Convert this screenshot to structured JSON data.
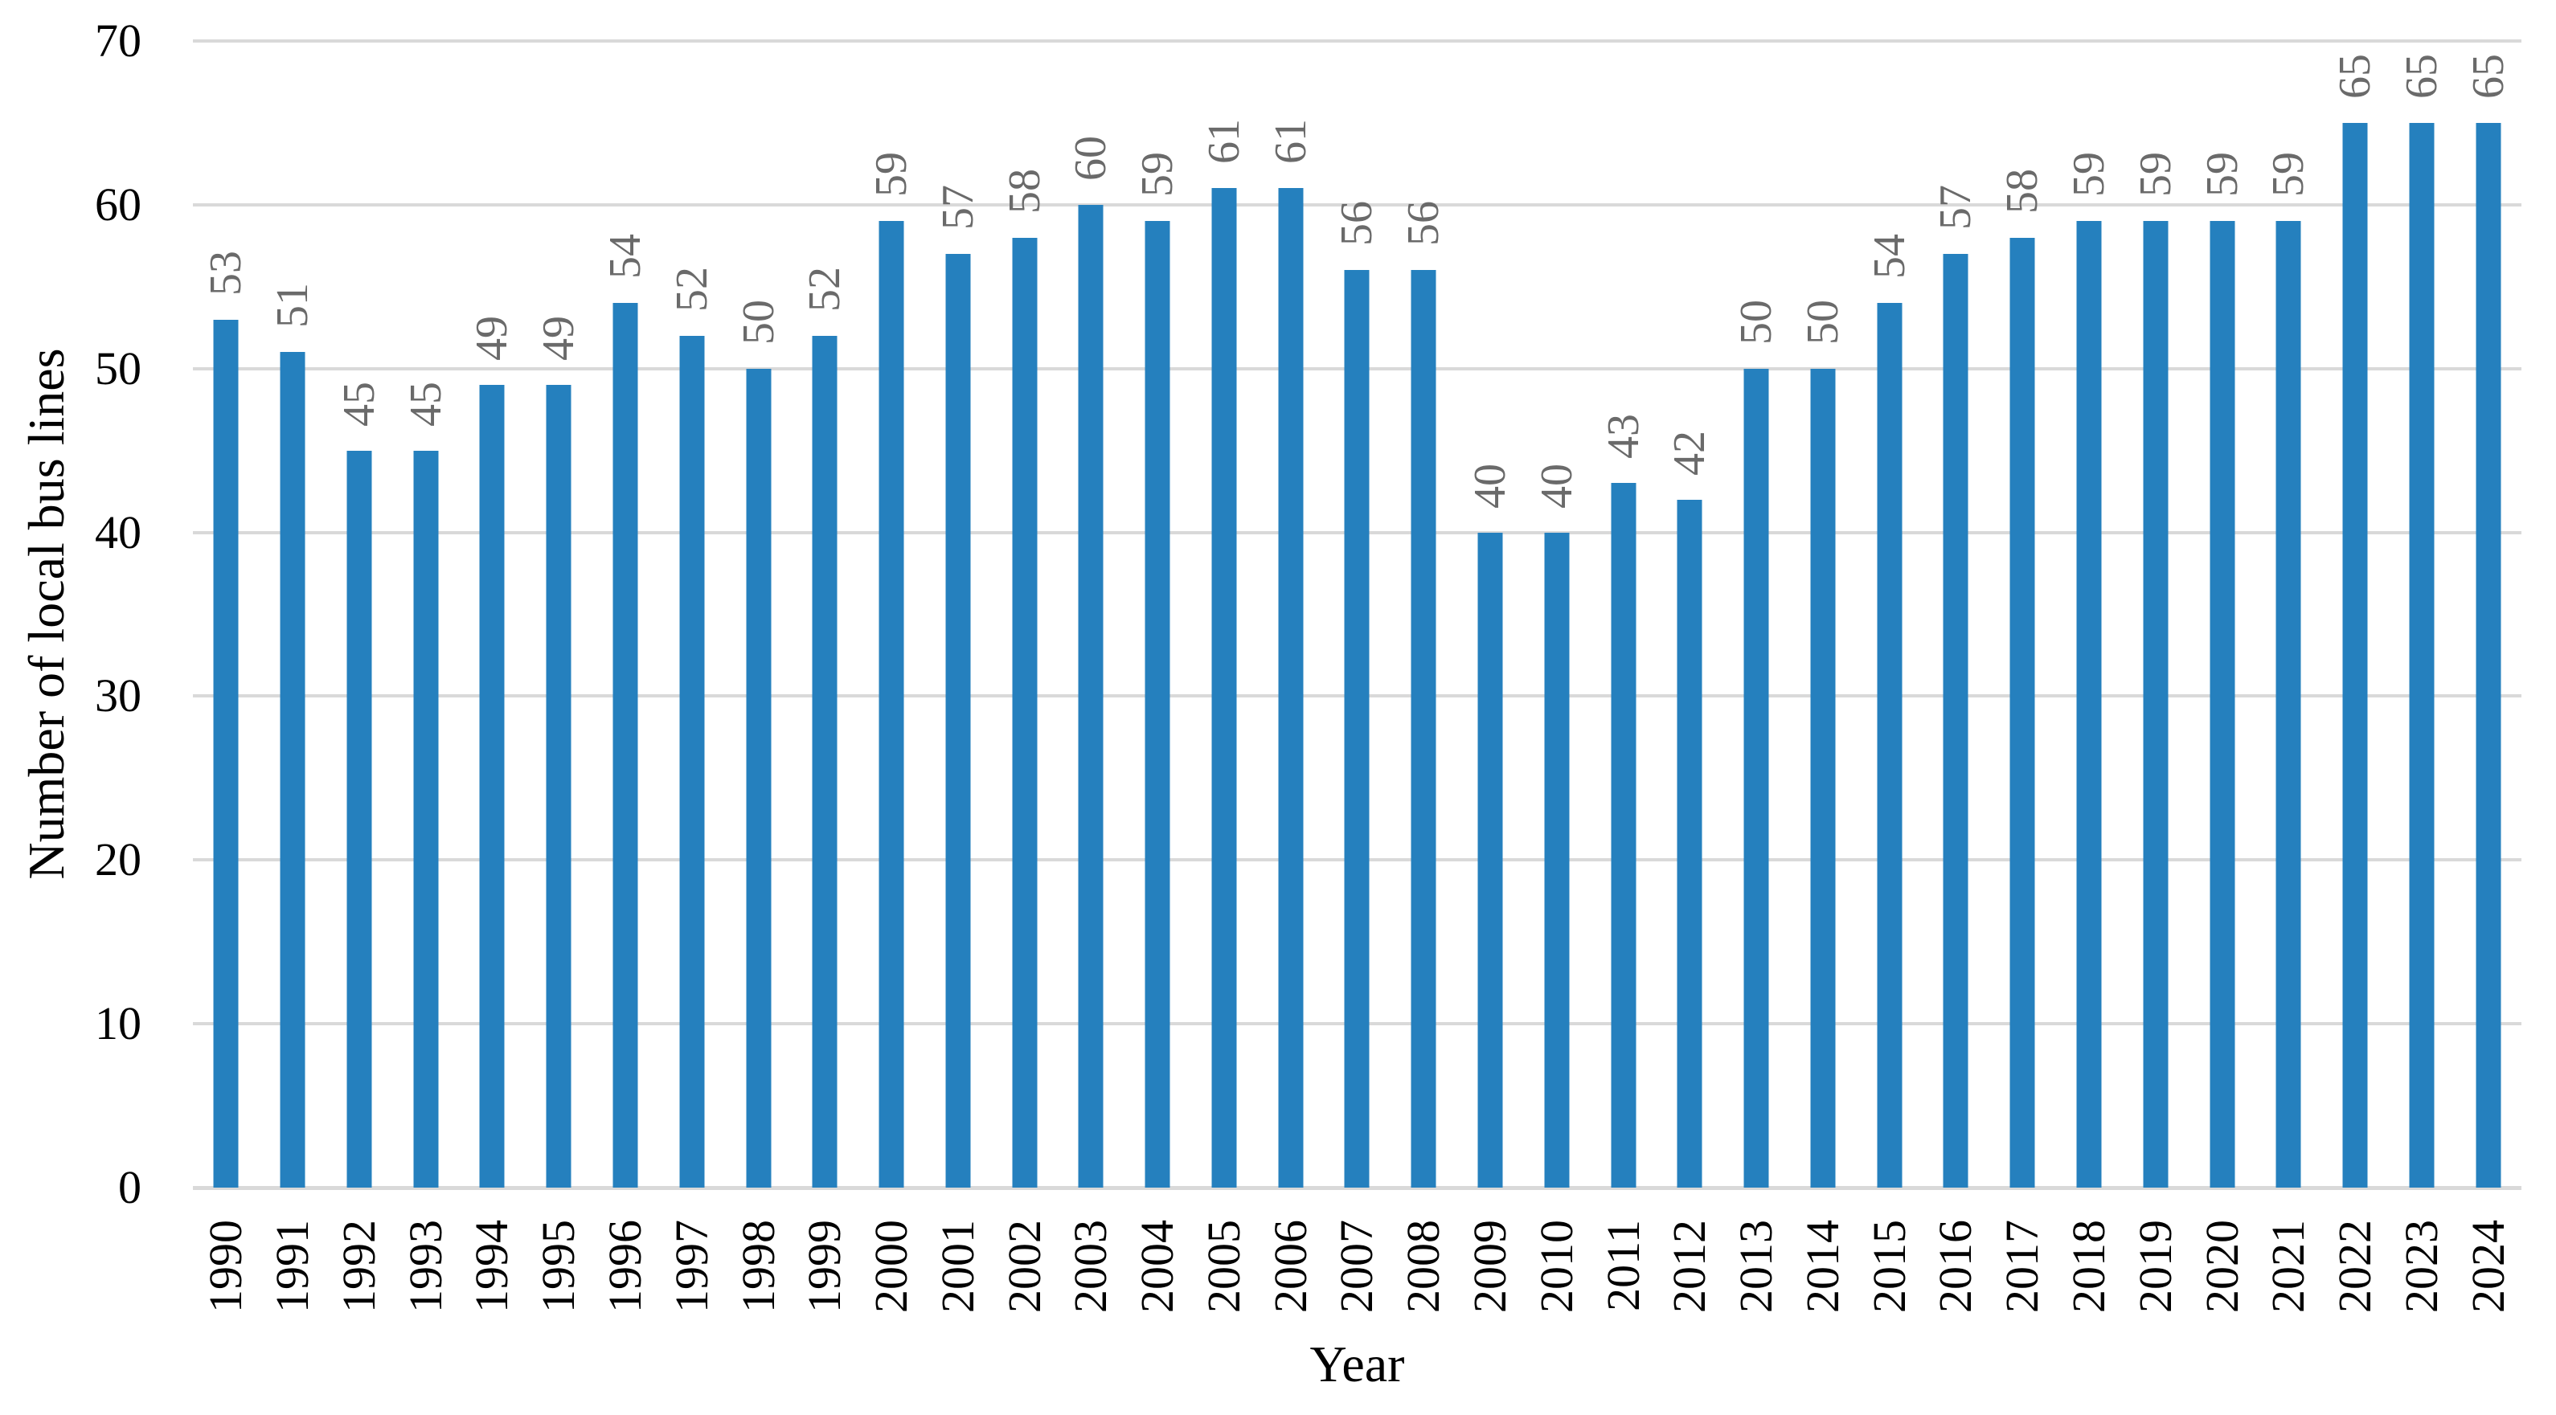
{
  "chart_data": {
    "type": "bar",
    "title": "",
    "xlabel": "Year",
    "ylabel": "Number of local bus lines",
    "categories": [
      "1990",
      "1991",
      "1992",
      "1993",
      "1994",
      "1995",
      "1996",
      "1997",
      "1998",
      "1999",
      "2000",
      "2001",
      "2002",
      "2003",
      "2004",
      "2005",
      "2006",
      "2007",
      "2008",
      "2009",
      "2010",
      "2011",
      "2012",
      "2013",
      "2014",
      "2015",
      "2016",
      "2017",
      "2018",
      "2019",
      "2020",
      "2021",
      "2022",
      "2023",
      "2024"
    ],
    "values": [
      53,
      51,
      45,
      45,
      49,
      49,
      54,
      52,
      50,
      52,
      59,
      57,
      58,
      60,
      59,
      61,
      61,
      56,
      56,
      40,
      40,
      43,
      42,
      50,
      50,
      54,
      57,
      58,
      59,
      59,
      59,
      59,
      65,
      65,
      65
    ],
    "ylim": [
      0,
      70
    ],
    "yticks": [
      0,
      10,
      20,
      30,
      40,
      50,
      60,
      70
    ],
    "grid": "horizontal-only",
    "legend": "none",
    "data_labels": "value-above-bar-rotated-90",
    "label_rotation": "90-degrees-bottom-to-top",
    "colors": {
      "bar": "#2580BE",
      "gridline": "#D9D9D9",
      "value_label": "#6A6A6A",
      "axis_text": "#000000",
      "background": "#FFFFFF"
    }
  }
}
